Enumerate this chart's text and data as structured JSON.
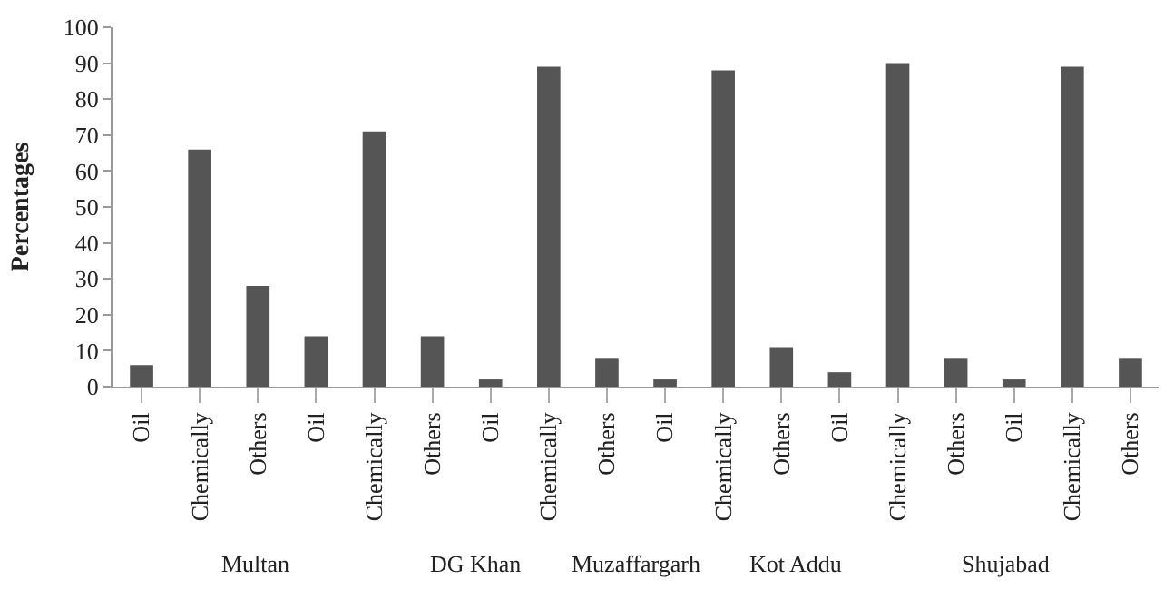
{
  "chart_data": {
    "type": "bar",
    "ylabel": "Percentages",
    "categories": [
      "Oil",
      "Chemically",
      "Others",
      "Oil",
      "Chemically",
      "Others",
      "Oil",
      "Chemically",
      "Others",
      "Oil",
      "Chemically",
      "Others",
      "Oil",
      "Chemically",
      "Others",
      "Oil",
      "Chemically",
      "Others"
    ],
    "values": [
      6,
      66,
      28,
      14,
      71,
      14,
      2,
      89,
      8,
      2,
      88,
      11,
      4,
      90,
      8,
      2,
      89,
      8
    ],
    "color": "#555555",
    "ylim": [
      0,
      100
    ],
    "yticks": [
      0,
      10,
      20,
      30,
      40,
      50,
      60,
      70,
      80,
      90,
      100
    ],
    "annotations": [
      "Multan",
      "DG Khan",
      "Muzaffargarh",
      "Kot Addu",
      "Shujabad"
    ]
  }
}
